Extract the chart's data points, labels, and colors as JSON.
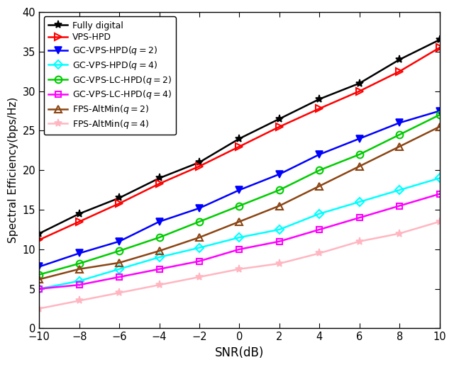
{
  "snr": [
    -10,
    -8,
    -6,
    -4,
    -2,
    0,
    2,
    4,
    6,
    8,
    10
  ],
  "fully_digital": [
    12.0,
    14.5,
    16.5,
    19.0,
    21.0,
    24.0,
    26.5,
    29.0,
    31.0,
    34.0,
    36.5
  ],
  "vps_hpd": [
    11.2,
    13.5,
    15.8,
    18.3,
    20.5,
    23.0,
    25.5,
    27.8,
    30.0,
    32.5,
    35.5
  ],
  "gc_vps_hpd_q2": [
    7.8,
    9.5,
    11.0,
    13.5,
    15.2,
    17.5,
    19.5,
    22.0,
    24.0,
    26.0,
    27.5
  ],
  "gc_vps_hpd_q4": [
    5.0,
    6.0,
    7.5,
    9.0,
    10.2,
    11.5,
    12.5,
    14.5,
    16.0,
    17.5,
    19.0
  ],
  "gc_vps_lc_hpd_q2": [
    6.8,
    8.2,
    9.8,
    11.5,
    13.5,
    15.5,
    17.5,
    20.0,
    22.0,
    24.5,
    27.0
  ],
  "gc_vps_lc_hpd_q4": [
    5.0,
    5.5,
    6.5,
    7.5,
    8.5,
    10.0,
    11.0,
    12.5,
    14.0,
    15.5,
    17.0
  ],
  "fps_altmin_q2": [
    6.2,
    7.5,
    8.3,
    9.8,
    11.5,
    13.5,
    15.5,
    18.0,
    20.5,
    23.0,
    25.5
  ],
  "fps_altmin_q4": [
    2.5,
    3.5,
    4.5,
    5.5,
    6.5,
    7.5,
    8.2,
    9.5,
    11.0,
    12.0,
    13.5
  ],
  "colors": {
    "fully_digital": "#000000",
    "vps_hpd": "#ff0000",
    "gc_vps_hpd_q2": "#0000ff",
    "gc_vps_hpd_q4": "#00ffff",
    "gc_vps_lc_hpd_q2": "#00cc00",
    "gc_vps_lc_hpd_q4": "#ff00ff",
    "fps_altmin_q2": "#8B4513",
    "fps_altmin_q4": "#ffb6c1"
  },
  "labels": {
    "fully_digital": "Fully digital",
    "vps_hpd": "VPS-HPD",
    "gc_vps_hpd_q2": "GC-VPS-HPD($q = 2$)",
    "gc_vps_hpd_q4": "GC-VPS-HPD($q = 4$)",
    "gc_vps_lc_hpd_q2": "GC-VPS-LC-HPD($q = 2$)",
    "gc_vps_lc_hpd_q4": "GC-VPS-LC-HPD($q = 4$)",
    "fps_altmin_q2": "FPS-AltMin($q = 2$)",
    "fps_altmin_q4": "FPS-AltMin($q = 4$)"
  },
  "xlabel": "SNR(dB)",
  "ylabel": "Spectral Efficiency(bps/Hz)",
  "xlim": [
    -10,
    10
  ],
  "ylim": [
    0,
    40
  ],
  "yticks": [
    0,
    5,
    10,
    15,
    20,
    25,
    30,
    35,
    40
  ],
  "xticks": [
    -10,
    -8,
    -6,
    -4,
    -2,
    0,
    2,
    4,
    6,
    8,
    10
  ],
  "figsize": [
    6.4,
    5.18
  ],
  "dpi": 100
}
